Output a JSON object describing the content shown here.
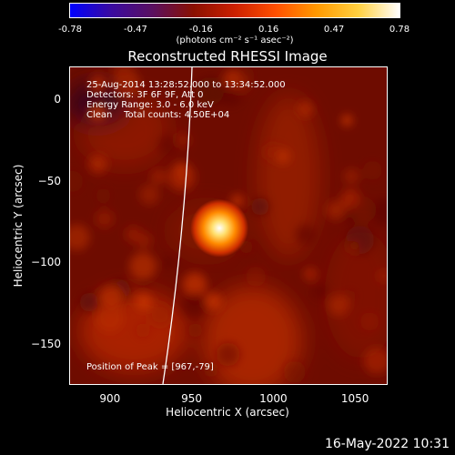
{
  "colorbar": {
    "colors": [
      "#0000ff",
      "#3a0aa0",
      "#5a1060",
      "#8a1000",
      "#cc2000",
      "#ff5000",
      "#ff9a00",
      "#ffd040",
      "#ffffff"
    ],
    "ticks": [
      "-0.78",
      "-0.47",
      "-0.16",
      "0.16",
      "0.47",
      "0.78"
    ],
    "tick_values": [
      -0.78,
      -0.47,
      -0.16,
      0.16,
      0.47,
      0.78
    ],
    "range": [
      -0.78,
      0.78
    ],
    "unit": "(photons cm⁻² s⁻¹ asec⁻²)"
  },
  "chart_data": {
    "type": "heatmap",
    "title": "Reconstructed RHESSI Image",
    "xlabel": "Heliocentric X (arcsec)",
    "ylabel": "Heliocentric Y (arcsec)",
    "xlim": [
      875,
      1070
    ],
    "ylim": [
      -175,
      20
    ],
    "xticks": [
      "900",
      "950",
      "1000",
      "1050"
    ],
    "xtick_values": [
      900,
      950,
      1000,
      1050
    ],
    "yticks": [
      "0",
      "−50",
      "−100",
      "−150"
    ],
    "ytick_values": [
      0,
      -50,
      -100,
      -150
    ],
    "peak": [
      967,
      -79
    ],
    "info_lines": [
      "25-Aug-2014 13:28:52.000 to 13:34:52.000",
      "Detectors: 3F 6F 9F, Att 0",
      "Energy Range: 3.0 - 6.0 keV",
      "Clean    Total counts: 4.50E+04"
    ],
    "peak_label": "Position of Peak = [967,-79]"
  },
  "timestamp": "16-May-2022 10:31"
}
